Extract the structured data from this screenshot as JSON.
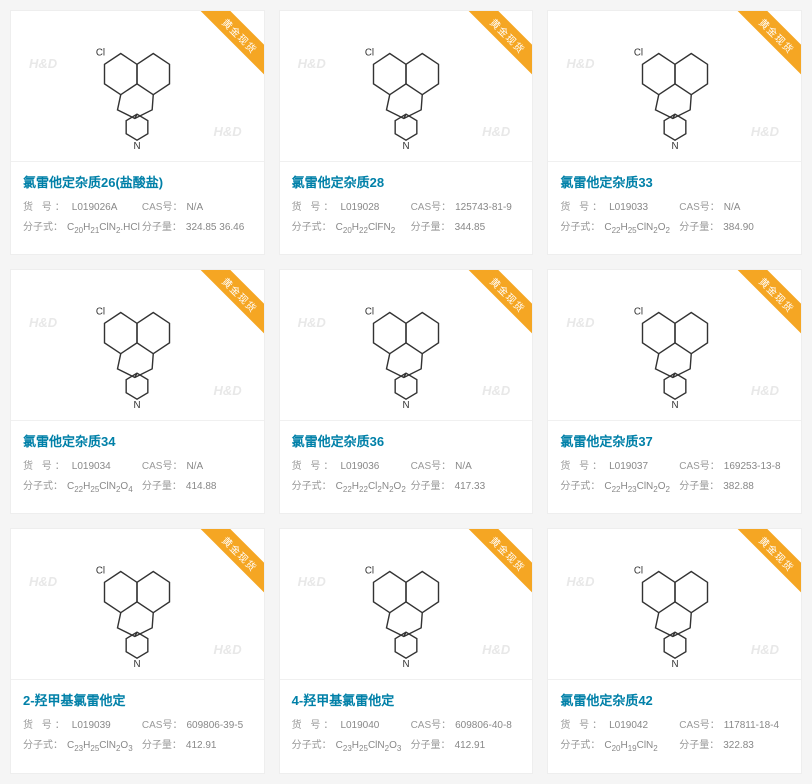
{
  "ribbon_text": "黄金现货",
  "labels": {
    "sku": "货 号：",
    "cas": "CAS号：",
    "formula": "分子式：",
    "mw": "分子量："
  },
  "watermark": "H&D",
  "colors": {
    "title": "#0080a8",
    "ribbon_bg": "#f5a623",
    "ribbon_text": "#ffffff",
    "label": "#999999",
    "value": "#888888",
    "card_bg": "#ffffff",
    "page_bg": "#f5f5f5"
  },
  "items": [
    {
      "title": "氯雷他定杂质26(盐酸盐)",
      "sku": "L019026A",
      "cas": "N/A",
      "formula_html": "C<sub>20</sub>H<sub>21</sub>ClN<sub>2</sub>.HCl",
      "mw": "324.85 36.46"
    },
    {
      "title": "氯雷他定杂质28",
      "sku": "L019028",
      "cas": "125743-81-9",
      "formula_html": "C<sub>20</sub>H<sub>22</sub>ClFN<sub>2</sub>",
      "mw": "344.85"
    },
    {
      "title": "氯雷他定杂质33",
      "sku": "L019033",
      "cas": "N/A",
      "formula_html": "C<sub>22</sub>H<sub>25</sub>ClN<sub>2</sub>O<sub>2</sub>",
      "mw": "384.90"
    },
    {
      "title": "氯雷他定杂质34",
      "sku": "L019034",
      "cas": "N/A",
      "formula_html": "C<sub>22</sub>H<sub>25</sub>ClN<sub>2</sub>O<sub>4</sub>",
      "mw": "414.88"
    },
    {
      "title": "氯雷他定杂质36",
      "sku": "L019036",
      "cas": "N/A",
      "formula_html": "C<sub>22</sub>H<sub>22</sub>Cl<sub>2</sub>N<sub>2</sub>O<sub>2</sub>",
      "mw": "417.33"
    },
    {
      "title": "氯雷他定杂质37",
      "sku": "L019037",
      "cas": "169253-13-8",
      "formula_html": "C<sub>22</sub>H<sub>23</sub>ClN<sub>2</sub>O<sub>2</sub>",
      "mw": "382.88"
    },
    {
      "title": "2-羟甲基氯雷他定",
      "sku": "L019039",
      "cas": "609806-39-5",
      "formula_html": "C<sub>23</sub>H<sub>25</sub>ClN<sub>2</sub>O<sub>3</sub>",
      "mw": "412.91"
    },
    {
      "title": "4-羟甲基氯雷他定",
      "sku": "L019040",
      "cas": "609806-40-8",
      "formula_html": "C<sub>23</sub>H<sub>25</sub>ClN<sub>2</sub>O<sub>3</sub>",
      "mw": "412.91"
    },
    {
      "title": "氯雷他定杂质42",
      "sku": "L019042",
      "cas": "117811-18-4",
      "formula_html": "C<sub>20</sub>H<sub>19</sub>ClN<sub>2</sub>",
      "mw": "322.83"
    }
  ]
}
